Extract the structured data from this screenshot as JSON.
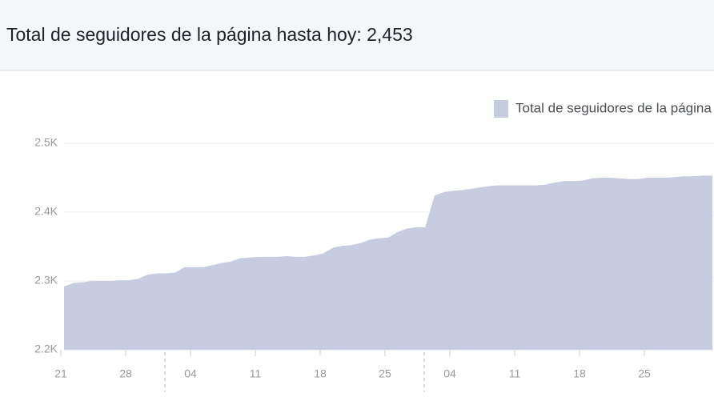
{
  "chart_data": {
    "type": "area",
    "title": "Total de seguidores de la página hasta hoy: 2,453",
    "categories": [
      "21",
      null,
      null,
      null,
      null,
      null,
      null,
      "28",
      null,
      null,
      null,
      null,
      null,
      null,
      "04",
      null,
      null,
      null,
      null,
      null,
      null,
      "11",
      null,
      null,
      null,
      null,
      null,
      null,
      "18",
      null,
      null,
      null,
      null,
      null,
      null,
      "25",
      null,
      null,
      null,
      null,
      null,
      null,
      "04",
      null,
      null,
      null,
      null,
      null,
      null,
      "11",
      null,
      null,
      null,
      null,
      null,
      null,
      "18",
      null,
      null,
      null,
      null,
      null,
      null,
      "25",
      null,
      null,
      null,
      null,
      null,
      null,
      null
    ],
    "series": [
      {
        "name": "Total de seguidores de la página",
        "color": "#c6cde0",
        "values": [
          2292,
          2297,
          2298,
          2300,
          2300,
          2300,
          2301,
          2301,
          2303,
          2309,
          2311,
          2311,
          2312,
          2320,
          2320,
          2320,
          2323,
          2326,
          2328,
          2333,
          2334,
          2335,
          2335,
          2335,
          2336,
          2335,
          2335,
          2337,
          2340,
          2348,
          2351,
          2352,
          2355,
          2360,
          2362,
          2363,
          2371,
          2376,
          2378,
          2378,
          2424,
          2429,
          2431,
          2432,
          2434,
          2436,
          2438,
          2439,
          2439,
          2439,
          2439,
          2439,
          2440,
          2443,
          2445,
          2445,
          2446,
          2449,
          2450,
          2450,
          2449,
          2448,
          2448,
          2450,
          2450,
          2450,
          2451,
          2452,
          2452,
          2453,
          2453
        ]
      }
    ],
    "ylim": [
      2200,
      2500
    ],
    "yticks": [
      {
        "value": 2200,
        "label": "2.2K"
      },
      {
        "value": 2300,
        "label": "2.3K"
      },
      {
        "value": 2400,
        "label": "2.4K"
      },
      {
        "value": 2500,
        "label": "2.5K"
      }
    ],
    "grid": true,
    "legend": "top-right"
  }
}
